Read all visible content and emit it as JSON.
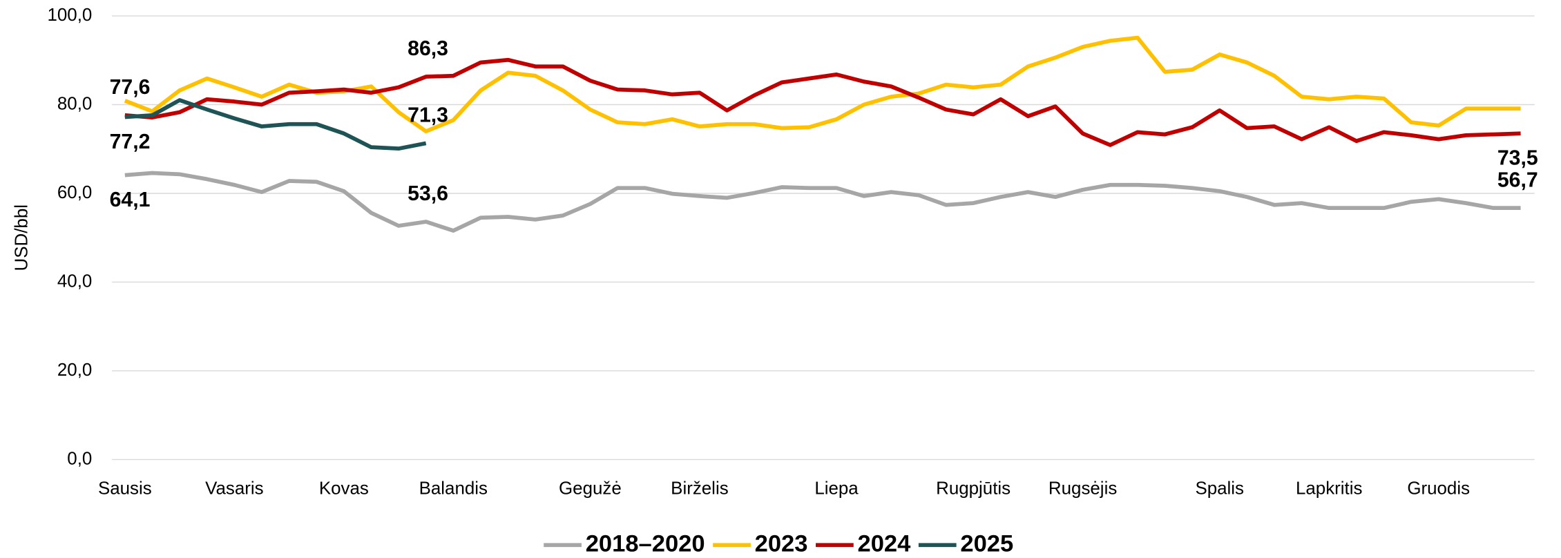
{
  "chart_data": {
    "type": "line",
    "y_label": "USD/bbl",
    "categories": [
      "Sausis",
      null,
      null,
      null,
      "Vasaris",
      null,
      null,
      null,
      "Kovas",
      null,
      null,
      null,
      "Balandis",
      null,
      null,
      null,
      null,
      "Gegužė",
      null,
      null,
      null,
      "Birželis",
      null,
      null,
      null,
      null,
      "Liepa",
      null,
      null,
      null,
      null,
      "Rugpjūtis",
      null,
      null,
      null,
      "Rugsėjis",
      null,
      null,
      null,
      null,
      "Spalis",
      null,
      null,
      null,
      "Lapkritis",
      null,
      null,
      null,
      "Gruodis",
      null,
      null,
      null
    ],
    "series": [
      {
        "name": "2018–2020",
        "color": "#a6a6a6",
        "values": [
          64.1,
          64.6,
          64.3,
          63.2,
          61.9,
          60.3,
          62.8,
          62.6,
          60.5,
          55.6,
          52.7,
          53.6,
          51.6,
          54.5,
          54.7,
          54.1,
          55.0,
          57.6,
          61.2,
          61.2,
          59.9,
          59.4,
          59.0,
          60.1,
          61.4,
          61.2,
          61.2,
          59.4,
          60.3,
          59.6,
          57.4,
          57.8,
          59.2,
          60.3,
          59.2,
          60.8,
          61.9,
          61.9,
          61.7,
          61.2,
          60.5,
          59.2,
          57.4,
          57.8,
          56.7,
          56.7,
          56.7,
          58.1,
          58.7,
          57.8,
          56.7,
          56.7
        ],
        "value_labels": [
          "64,1",
          null,
          null,
          null,
          null,
          null,
          null,
          null,
          null,
          null,
          null,
          "53,6",
          null,
          null,
          null,
          null,
          null,
          null,
          null,
          null,
          null,
          null,
          null,
          null,
          null,
          null,
          null,
          null,
          null,
          null,
          null,
          null,
          null,
          null,
          null,
          null,
          null,
          null,
          null,
          null,
          null,
          null,
          null,
          null,
          null,
          null,
          null,
          null,
          null,
          null,
          null,
          "56,7"
        ]
      },
      {
        "name": "2023",
        "color": "#ffc000",
        "values": [
          80.9,
          78.5,
          83.2,
          85.9,
          83.9,
          81.8,
          84.5,
          82.7,
          83.0,
          84.1,
          78.3,
          74.0,
          76.5,
          83.2,
          87.2,
          86.5,
          83.2,
          78.9,
          76.0,
          75.6,
          76.7,
          75.1,
          75.6,
          75.6,
          74.7,
          74.9,
          76.7,
          80.0,
          81.8,
          82.5,
          84.5,
          83.9,
          84.5,
          88.6,
          90.6,
          93.0,
          94.4,
          95.1,
          87.4,
          87.9,
          91.3,
          89.5,
          86.5,
          81.8,
          81.2,
          81.8,
          81.4,
          76.0,
          75.3,
          79.1,
          79.1,
          79.1
        ]
      },
      {
        "name": "2024",
        "color": "#c00000",
        "values": [
          77.6,
          77.1,
          78.3,
          81.2,
          80.7,
          80.0,
          82.7,
          83.0,
          83.4,
          82.7,
          83.9,
          86.3,
          86.5,
          89.5,
          90.1,
          88.6,
          88.6,
          85.4,
          83.4,
          83.2,
          82.3,
          82.7,
          78.7,
          82.1,
          85.0,
          85.9,
          86.8,
          85.2,
          84.1,
          81.6,
          78.9,
          77.8,
          81.2,
          77.4,
          79.6,
          73.5,
          70.9,
          73.8,
          73.3,
          74.9,
          78.7,
          74.7,
          75.1,
          72.2,
          74.9,
          71.8,
          73.8,
          73.1,
          72.2,
          73.1,
          73.3,
          73.5
        ],
        "value_labels": [
          "77,6",
          null,
          null,
          null,
          null,
          null,
          null,
          null,
          null,
          null,
          null,
          "86,3",
          null,
          null,
          null,
          null,
          null,
          null,
          null,
          null,
          null,
          null,
          null,
          null,
          null,
          null,
          null,
          null,
          null,
          null,
          null,
          null,
          null,
          null,
          null,
          null,
          null,
          null,
          null,
          null,
          null,
          null,
          null,
          null,
          null,
          null,
          null,
          null,
          null,
          null,
          null,
          "73,5"
        ]
      },
      {
        "name": "2025",
        "color": "#1f5456",
        "values": [
          77.2,
          77.6,
          81.0,
          78.9,
          76.9,
          75.1,
          75.6,
          75.6,
          73.5,
          70.4,
          70.1,
          71.3,
          null,
          null,
          null,
          null,
          null,
          null,
          null,
          null,
          null,
          null,
          null,
          null,
          null,
          null,
          null,
          null,
          null,
          null,
          null,
          null,
          null,
          null,
          null,
          null,
          null,
          null,
          null,
          null,
          null,
          null,
          null,
          null,
          null,
          null,
          null,
          null,
          null,
          null,
          null,
          null
        ],
        "value_labels": [
          "77,2",
          null,
          null,
          null,
          null,
          null,
          null,
          null,
          null,
          null,
          null,
          "71,3",
          null,
          null,
          null,
          null,
          null,
          null,
          null,
          null,
          null,
          null,
          null,
          null,
          null,
          null,
          null,
          null,
          null,
          null,
          null,
          null,
          null,
          null,
          null,
          null,
          null,
          null,
          null,
          null,
          null,
          null,
          null,
          null,
          null,
          null,
          null,
          null,
          null,
          null,
          null,
          null
        ]
      }
    ],
    "ylim": [
      0,
      100
    ],
    "yticks": [
      {
        "value": 0,
        "label": "0,0"
      },
      {
        "value": 20,
        "label": "20,0"
      },
      {
        "value": 40,
        "label": "40,0"
      },
      {
        "value": 60,
        "label": "60,0"
      },
      {
        "value": 80,
        "label": "80,0"
      },
      {
        "value": 100,
        "label": "100,0"
      }
    ],
    "grid": true,
    "legend": "bottom"
  }
}
